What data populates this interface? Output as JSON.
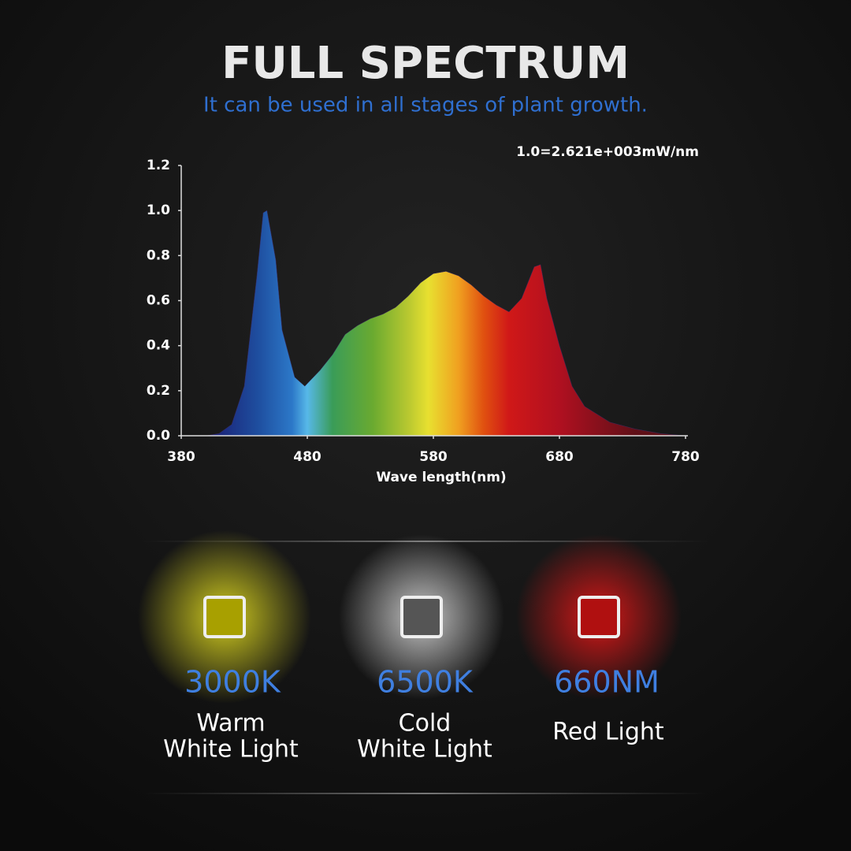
{
  "chart_data": {
    "type": "area",
    "title": "FULL  SPECTRUM",
    "subtitle": "It can be used in all stages of plant growth.",
    "annotation": "1.0=2.621e+003mW/nm",
    "x_label": "Wave length(nm)",
    "x": [
      400,
      410,
      420,
      430,
      440,
      445,
      448,
      455,
      460,
      470,
      478,
      490,
      500,
      510,
      520,
      530,
      540,
      550,
      560,
      570,
      580,
      590,
      600,
      610,
      620,
      630,
      640,
      650,
      660,
      665,
      670,
      680,
      690,
      700,
      720,
      740,
      760,
      780
    ],
    "values": [
      0,
      0.01,
      0.05,
      0.22,
      0.71,
      0.99,
      1.0,
      0.78,
      0.47,
      0.26,
      0.22,
      0.29,
      0.36,
      0.45,
      0.49,
      0.52,
      0.54,
      0.57,
      0.62,
      0.68,
      0.72,
      0.73,
      0.71,
      0.67,
      0.62,
      0.58,
      0.55,
      0.61,
      0.75,
      0.76,
      0.61,
      0.4,
      0.22,
      0.13,
      0.06,
      0.03,
      0.01,
      0
    ],
    "xlim": [
      380,
      780
    ],
    "xticks": [
      380,
      480,
      580,
      680,
      780
    ],
    "ylim": [
      0,
      1.2
    ],
    "yticks": [
      {
        "value": 0,
        "label": "0.0"
      },
      0.2,
      0.4,
      0.6,
      0.8,
      {
        "value": 1,
        "label": "1.0"
      },
      1.2
    ]
  },
  "leds": [
    {
      "value": "3000K",
      "name_lines": [
        "Warm",
        "White Light"
      ]
    },
    {
      "value": "6500K",
      "name_lines": [
        "Cold",
        "White Light"
      ]
    },
    {
      "value": "660NM",
      "name_lines": [
        "Red Light"
      ]
    }
  ]
}
